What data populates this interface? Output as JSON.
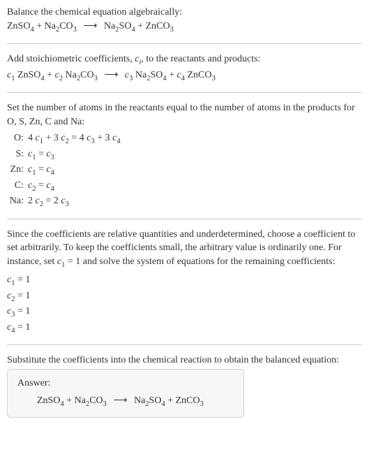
{
  "colors": {
    "text": "#333333",
    "divider": "#cccccc",
    "answer_bg": "#f7f7f7",
    "answer_border": "#d0d0d0",
    "background": "#ffffff"
  },
  "typography": {
    "body_fontsize": 14,
    "sub_scale": 0.75,
    "font_family": "Georgia, 'Times New Roman', serif"
  },
  "section1": {
    "line1": "Balance the chemical equation algebraically:",
    "equation_html": "ZnSO<sub>4</sub> + Na<sub>2</sub>CO<sub>3</sub> <span class='arrow'>⟶</span> Na<sub>2</sub>SO<sub>4</sub> + ZnCO<sub>3</sub>"
  },
  "section2": {
    "line1_html": "Add stoichiometric coefficients, <span class='italic'>c<sub>i</sub></span>, to the reactants and products:",
    "equation_html": "<span class='italic'>c</span><sub>1</sub> ZnSO<sub>4</sub> + <span class='italic'>c</span><sub>2</sub> Na<sub>2</sub>CO<sub>3</sub> <span class='arrow'>⟶</span> <span class='italic'>c</span><sub>3</sub> Na<sub>2</sub>SO<sub>4</sub> + <span class='italic'>c</span><sub>4</sub> ZnCO<sub>3</sub>"
  },
  "section3": {
    "intro": "Set the number of atoms in the reactants equal to the number of atoms in the products for O, S, Zn, C and Na:",
    "rows": [
      {
        "label": "O:",
        "eq_html": "4 <span class='italic'>c</span><sub>1</sub> + 3 <span class='italic'>c</span><sub>2</sub> = 4 <span class='italic'>c</span><sub>3</sub> + 3 <span class='italic'>c</span><sub>4</sub>"
      },
      {
        "label": "S:",
        "eq_html": "<span class='italic'>c</span><sub>1</sub> = <span class='italic'>c</span><sub>3</sub>"
      },
      {
        "label": "Zn:",
        "eq_html": "<span class='italic'>c</span><sub>1</sub> = <span class='italic'>c</span><sub>4</sub>"
      },
      {
        "label": "C:",
        "eq_html": "<span class='italic'>c</span><sub>2</sub> = <span class='italic'>c</span><sub>4</sub>"
      },
      {
        "label": "Na:",
        "eq_html": "2 <span class='italic'>c</span><sub>2</sub> = 2 <span class='italic'>c</span><sub>3</sub>"
      }
    ]
  },
  "section4": {
    "intro_html": "Since the coefficients are relative quantities and underdetermined, choose a coefficient to set arbitrarily. To keep the coefficients small, the arbitrary value is ordinarily one. For instance, set <span class='italic'>c</span><sub>1</sub> = 1 and solve the system of equations for the remaining coefficients:",
    "coeffs": [
      {
        "html": "<span class='italic'>c</span><sub>1</sub> = 1"
      },
      {
        "html": "<span class='italic'>c</span><sub>2</sub> = 1"
      },
      {
        "html": "<span class='italic'>c</span><sub>3</sub> = 1"
      },
      {
        "html": "<span class='italic'>c</span><sub>4</sub> = 1"
      }
    ]
  },
  "section5": {
    "intro": "Substitute the coefficients into the chemical reaction to obtain the balanced equation:",
    "answer_label": "Answer:",
    "answer_html": "ZnSO<sub>4</sub> + Na<sub>2</sub>CO<sub>3</sub> <span class='arrow'>⟶</span> Na<sub>2</sub>SO<sub>4</sub> + ZnCO<sub>3</sub>"
  }
}
